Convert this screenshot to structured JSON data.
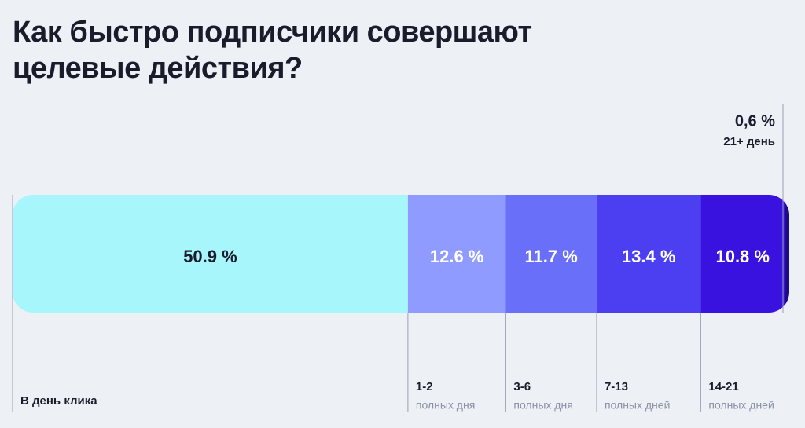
{
  "chart_data": {
    "type": "stacked-bar",
    "title": "Как быстро подписчики совершают целевые действия?",
    "categories": [
      "В день клика",
      "1-2",
      "3-6",
      "7-13",
      "14-21",
      "21+ день"
    ],
    "category_notes": [
      null,
      "полных дня",
      "полных дня",
      "полных дней",
      "полных дней",
      null
    ],
    "values": [
      50.9,
      12.6,
      11.7,
      13.4,
      10.8,
      0.6
    ],
    "value_labels": [
      "50.9 %",
      "12.6 %",
      "11.7 %",
      "13.4 %",
      "10.8 %",
      "0,6 %"
    ],
    "colors": [
      "#a6f6fb",
      "#8f9bff",
      "#6a6ffa",
      "#4b3ff1",
      "#3a12df",
      "#1e0b86"
    ],
    "xlim": [
      0,
      100
    ]
  }
}
